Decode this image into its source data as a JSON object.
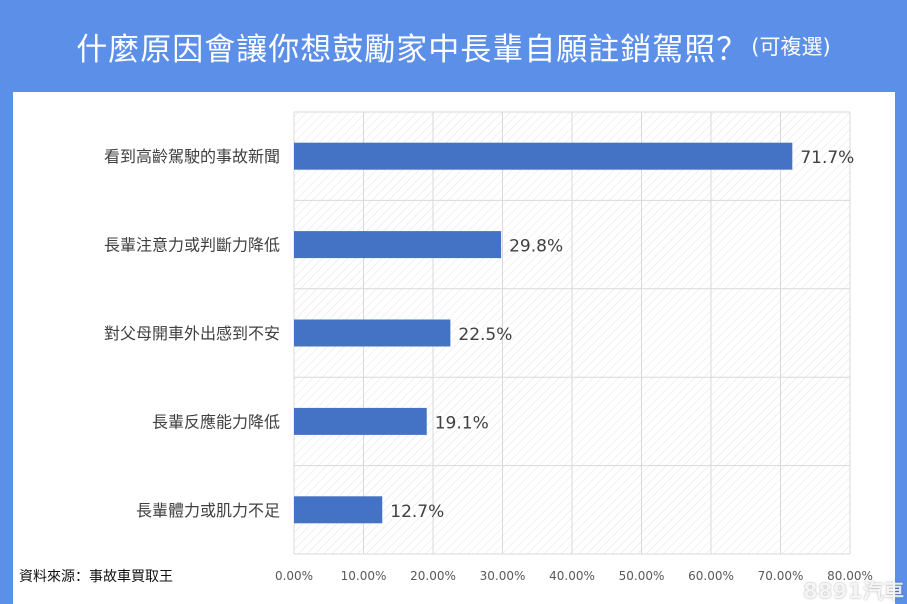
{
  "title": "什麼原因會讓你想鼓勵家中長輩自願註銷駕照？",
  "title_suffix": "(可複選)",
  "source_text": "資料來源：事故車買取王",
  "watermark": "8891汽車",
  "colors": {
    "background": "#5b8fe8",
    "panel": "#ffffff",
    "bar": "#4472c4",
    "grid": "#d9d9d9"
  },
  "chart_data": {
    "type": "bar",
    "orientation": "horizontal",
    "categories": [
      "看到高齡駕駛的事故新聞",
      "長輩注意力或判斷力降低",
      "對父母開車外出感到不安",
      "長輩反應能力降低",
      "長輩體力或肌力不足"
    ],
    "values": [
      71.7,
      29.8,
      22.5,
      19.1,
      12.7
    ],
    "value_labels": [
      "71.7%",
      "29.8%",
      "22.5%",
      "19.1%",
      "12.7%"
    ],
    "xlim": [
      0,
      80
    ],
    "xticks": [
      "0.00%",
      "10.00%",
      "20.00%",
      "30.00%",
      "40.00%",
      "50.00%",
      "60.00%",
      "70.00%",
      "80.00%"
    ],
    "grid": true,
    "legend": "none"
  }
}
